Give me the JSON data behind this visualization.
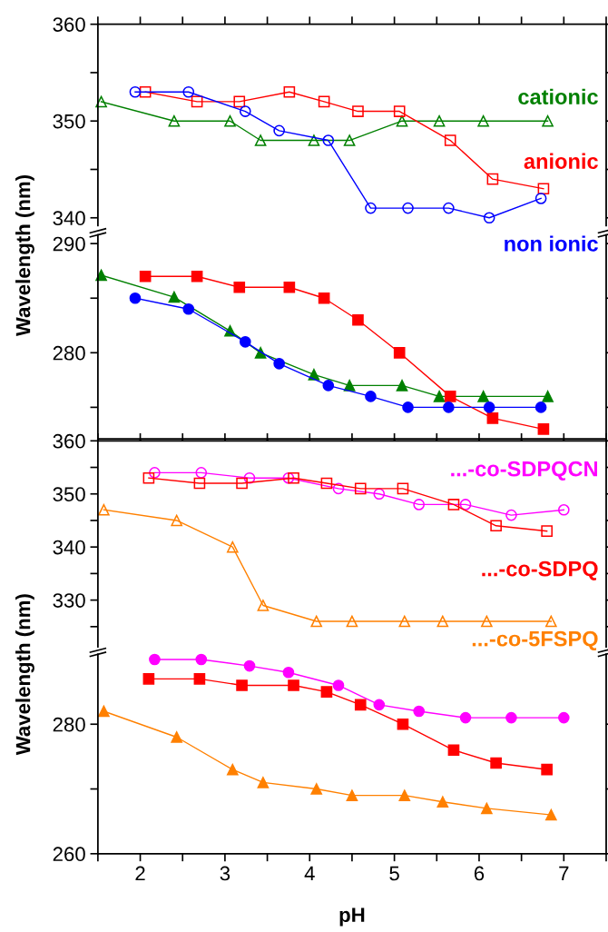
{
  "chart_data": [
    {
      "type": "line",
      "ylabel": null,
      "xlim": [
        1.5,
        7.5
      ],
      "ylim": [
        339.2,
        360
      ],
      "xticks": [
        {
          "value": 1.5,
          "label": null
        },
        {
          "value": 2,
          "label": null
        },
        {
          "value": 2.5,
          "label": null
        },
        {
          "value": 3,
          "label": null
        },
        {
          "value": 3.5,
          "label": null
        },
        {
          "value": 4,
          "label": null
        },
        {
          "value": 4.5,
          "label": null
        },
        {
          "value": 5,
          "label": null
        },
        {
          "value": 5.5,
          "label": null
        },
        {
          "value": 6,
          "label": null
        },
        {
          "value": 6.5,
          "label": null
        },
        {
          "value": 7,
          "label": null
        },
        {
          "value": 7.5,
          "label": null
        }
      ],
      "yticks": [
        340,
        {
          "value": 345,
          "label": null
        },
        350,
        {
          "value": 355,
          "label": null
        },
        360
      ],
      "tick_labels": "y",
      "grid": false,
      "line_style": "solid",
      "series": [
        {
          "name": "cationic",
          "color": "#008000",
          "marker": "triangle",
          "x": [
            1.54,
            2.4,
            3.06,
            3.42,
            4.05,
            4.47,
            5.09,
            5.53,
            6.05,
            6.81
          ],
          "values": [
            352,
            350,
            350,
            348,
            348,
            348,
            350,
            350,
            350,
            350
          ]
        },
        {
          "name": "anionic",
          "color": "#ff0000",
          "marker": "square",
          "x": [
            2.06,
            2.67,
            3.17,
            3.76,
            4.17,
            4.57,
            5.06,
            5.66,
            6.16,
            6.76
          ],
          "values": [
            353,
            352,
            352,
            353,
            352,
            351,
            351,
            348,
            344,
            343
          ]
        },
        {
          "name": "non ionic",
          "color": "#0000ff",
          "marker": "circle",
          "x": [
            1.94,
            2.57,
            3.24,
            3.64,
            4.22,
            4.72,
            5.16,
            5.64,
            6.12,
            6.73
          ],
          "values": [
            353,
            353,
            351,
            349,
            348,
            341,
            341,
            341,
            340,
            342
          ]
        }
      ]
    },
    {
      "type": "line",
      "ylabel": "Wavelength (nm)",
      "xlim": [
        1.5,
        7.5
      ],
      "ylim": [
        272.1,
        290.8
      ],
      "xticks": [
        {
          "value": 1.5,
          "label": null
        },
        {
          "value": 2,
          "label": null
        },
        {
          "value": 2.5,
          "label": null
        },
        {
          "value": 3,
          "label": null
        },
        {
          "value": 3.5,
          "label": null
        },
        {
          "value": 4,
          "label": null
        },
        {
          "value": 4.5,
          "label": null
        },
        {
          "value": 5,
          "label": null
        },
        {
          "value": 5.5,
          "label": null
        },
        {
          "value": 6,
          "label": null
        },
        {
          "value": 6.5,
          "label": null
        },
        {
          "value": 7,
          "label": null
        },
        {
          "value": 7.5,
          "label": null
        }
      ],
      "yticks": [
        {
          "value": 275,
          "label": null
        },
        280,
        {
          "value": 285,
          "label": null
        },
        290
      ],
      "tick_labels": "y",
      "grid": false,
      "line_style": "solid",
      "series": [
        {
          "color": "#008000",
          "marker": "triangle",
          "x": [
            1.54,
            2.4,
            3.06,
            3.42,
            4.05,
            4.47,
            5.09,
            5.53,
            6.05,
            6.81
          ],
          "values": [
            287.1,
            285.1,
            282,
            280,
            278,
            277,
            277,
            276,
            276,
            276
          ]
        },
        {
          "color": "#ff0000",
          "marker": "square",
          "x": [
            2.06,
            2.67,
            3.17,
            3.76,
            4.17,
            4.57,
            5.06,
            5.66,
            6.16,
            6.76
          ],
          "values": [
            287,
            287,
            286,
            286,
            285,
            283,
            280,
            276,
            274,
            273
          ]
        },
        {
          "color": "#0000ff",
          "marker": "circle",
          "x": [
            1.94,
            2.57,
            3.24,
            3.64,
            4.22,
            4.72,
            5.16,
            5.64,
            6.12,
            6.73
          ],
          "values": [
            285,
            284,
            281,
            279,
            277,
            276,
            275,
            275,
            275,
            275
          ]
        }
      ]
    },
    {
      "type": "line",
      "xlim": [
        1.5,
        7.5
      ],
      "ylim": [
        321.2,
        360
      ],
      "xticks": [
        {
          "value": 1.5,
          "label": null
        },
        {
          "value": 2,
          "label": null
        },
        {
          "value": 2.5,
          "label": null
        },
        {
          "value": 3,
          "label": null
        },
        {
          "value": 3.5,
          "label": null
        },
        {
          "value": 4,
          "label": null
        },
        {
          "value": 4.5,
          "label": null
        },
        {
          "value": 5,
          "label": null
        },
        {
          "value": 5.5,
          "label": null
        },
        {
          "value": 6,
          "label": null
        },
        {
          "value": 6.5,
          "label": null
        },
        {
          "value": 7,
          "label": null
        },
        {
          "value": 7.5,
          "label": null
        }
      ],
      "yticks": [
        {
          "value": 325,
          "label": null
        },
        330,
        {
          "value": 335,
          "label": null
        },
        340,
        {
          "value": 345,
          "label": null
        },
        350,
        {
          "value": 355,
          "label": null
        },
        360
      ],
      "tick_labels": "y",
      "grid": false,
      "line_style": "solid",
      "series": [
        {
          "name": "...-co-SDPQCN",
          "color": "#ff00ff",
          "marker": "circle",
          "x": [
            2.17,
            2.72,
            3.29,
            3.75,
            4.34,
            4.82,
            5.29,
            5.84,
            6.38,
            7.0
          ],
          "values": [
            354,
            354,
            353,
            353,
            351,
            350,
            348,
            348,
            346,
            347
          ]
        },
        {
          "name": "...-co-SDPQ",
          "color": "#ff0000",
          "marker": "square",
          "x": [
            2.1,
            2.7,
            3.2,
            3.81,
            4.2,
            4.6,
            5.1,
            5.7,
            6.2,
            6.8
          ],
          "values": [
            353,
            352,
            352,
            353,
            352,
            351,
            351,
            348,
            344,
            343
          ]
        },
        {
          "name": "...-co-5FSPQ",
          "color": "#ff8000",
          "marker": "triangle",
          "x": [
            1.57,
            2.43,
            3.09,
            3.45,
            4.08,
            4.5,
            5.12,
            5.57,
            6.09,
            6.85
          ],
          "values": [
            347,
            345,
            340,
            329,
            326,
            326,
            326,
            326,
            326,
            326
          ]
        }
      ]
    },
    {
      "type": "line",
      "xlabel": "pH",
      "ylabel": "Wavelength (nm)",
      "xlim": [
        1.5,
        7.5
      ],
      "ylim": [
        260,
        290.8
      ],
      "xticks": [
        {
          "value": 1.5,
          "label": null
        },
        2,
        {
          "value": 2.5,
          "label": null
        },
        3,
        {
          "value": 3.5,
          "label": null
        },
        4,
        {
          "value": 4.5,
          "label": null
        },
        5,
        {
          "value": 5.5,
          "label": null
        },
        6,
        {
          "value": 6.5,
          "label": null
        },
        7,
        {
          "value": 7.5,
          "label": null
        }
      ],
      "yticks": [
        260,
        {
          "value": 270,
          "label": null
        },
        280
      ],
      "grid": false,
      "line_style": "solid",
      "series": [
        {
          "color": "#ff00ff",
          "marker": "circle",
          "x": [
            2.17,
            2.72,
            3.29,
            3.75,
            4.34,
            4.82,
            5.29,
            5.84,
            6.38,
            7.0
          ],
          "values": [
            290,
            290,
            289,
            288,
            286,
            283,
            282,
            281,
            281,
            281
          ]
        },
        {
          "color": "#ff0000",
          "marker": "square",
          "x": [
            2.1,
            2.7,
            3.2,
            3.81,
            4.2,
            4.6,
            5.1,
            5.7,
            6.2,
            6.8
          ],
          "values": [
            287,
            287,
            286,
            286,
            285,
            283,
            280,
            276,
            274,
            273
          ]
        },
        {
          "color": "#ff8000",
          "marker": "triangle",
          "x": [
            1.57,
            2.43,
            3.09,
            3.45,
            4.08,
            4.5,
            5.12,
            5.57,
            6.09,
            6.85
          ],
          "values": [
            282,
            278,
            273,
            271,
            270,
            269,
            269,
            268,
            267,
            266
          ]
        }
      ]
    }
  ]
}
